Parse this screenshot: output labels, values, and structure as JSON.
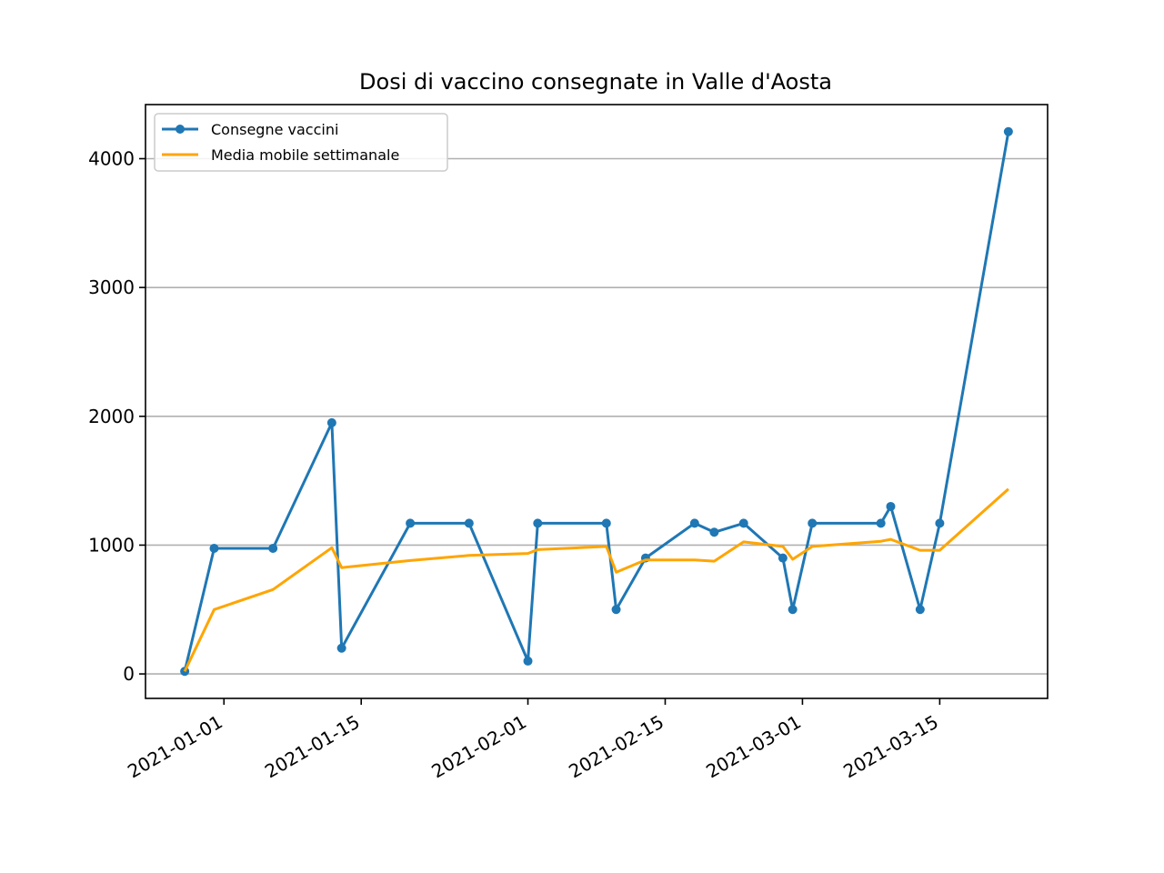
{
  "chart_data": {
    "type": "line",
    "title": "Dosi di vaccino consegnate in Valle d'Aosta",
    "xlabel": "",
    "ylabel": "",
    "x_axis_type": "date",
    "xlim": [
      "2020-12-24",
      "2021-03-26"
    ],
    "ylim": [
      -190,
      4420
    ],
    "x_ticks": [
      "2021-01-01",
      "2021-01-15",
      "2021-02-01",
      "2021-02-15",
      "2021-03-01",
      "2021-03-15"
    ],
    "y_ticks": [
      0,
      1000,
      2000,
      3000,
      4000
    ],
    "grid": "horizontal",
    "legend_position": "top-left",
    "series": [
      {
        "name": "Consegne vaccini",
        "color": "#1f77b4",
        "marker": "circle",
        "points": [
          {
            "x": "2020-12-28",
            "y": 20
          },
          {
            "x": "2020-12-31",
            "y": 975
          },
          {
            "x": "2021-01-06",
            "y": 975
          },
          {
            "x": "2021-01-12",
            "y": 1950
          },
          {
            "x": "2021-01-13",
            "y": 200
          },
          {
            "x": "2021-01-20",
            "y": 1170
          },
          {
            "x": "2021-01-26",
            "y": 1170
          },
          {
            "x": "2021-02-01",
            "y": 100
          },
          {
            "x": "2021-02-02",
            "y": 1170
          },
          {
            "x": "2021-02-09",
            "y": 1170
          },
          {
            "x": "2021-02-10",
            "y": 500
          },
          {
            "x": "2021-02-13",
            "y": 900
          },
          {
            "x": "2021-02-18",
            "y": 1170
          },
          {
            "x": "2021-02-20",
            "y": 1100
          },
          {
            "x": "2021-02-23",
            "y": 1170
          },
          {
            "x": "2021-02-27",
            "y": 900
          },
          {
            "x": "2021-02-28",
            "y": 500
          },
          {
            "x": "2021-03-02",
            "y": 1170
          },
          {
            "x": "2021-03-09",
            "y": 1170
          },
          {
            "x": "2021-03-10",
            "y": 1300
          },
          {
            "x": "2021-03-13",
            "y": 500
          },
          {
            "x": "2021-03-15",
            "y": 1170
          },
          {
            "x": "2021-03-22",
            "y": 4210
          }
        ]
      },
      {
        "name": "Media mobile settimanale",
        "color": "#ffa500",
        "marker": "none",
        "points": [
          {
            "x": "2020-12-28",
            "y": 20
          },
          {
            "x": "2020-12-31",
            "y": 500
          },
          {
            "x": "2021-01-06",
            "y": 655
          },
          {
            "x": "2021-01-12",
            "y": 980
          },
          {
            "x": "2021-01-13",
            "y": 825
          },
          {
            "x": "2021-01-20",
            "y": 880
          },
          {
            "x": "2021-01-26",
            "y": 920
          },
          {
            "x": "2021-02-01",
            "y": 935
          },
          {
            "x": "2021-02-02",
            "y": 965
          },
          {
            "x": "2021-02-09",
            "y": 990
          },
          {
            "x": "2021-02-10",
            "y": 790
          },
          {
            "x": "2021-02-13",
            "y": 885
          },
          {
            "x": "2021-02-18",
            "y": 885
          },
          {
            "x": "2021-02-20",
            "y": 875
          },
          {
            "x": "2021-02-23",
            "y": 1025
          },
          {
            "x": "2021-02-27",
            "y": 990
          },
          {
            "x": "2021-02-28",
            "y": 890
          },
          {
            "x": "2021-03-02",
            "y": 990
          },
          {
            "x": "2021-03-09",
            "y": 1030
          },
          {
            "x": "2021-03-10",
            "y": 1045
          },
          {
            "x": "2021-03-13",
            "y": 960
          },
          {
            "x": "2021-03-15",
            "y": 960
          },
          {
            "x": "2021-03-22",
            "y": 1435
          }
        ]
      }
    ]
  }
}
